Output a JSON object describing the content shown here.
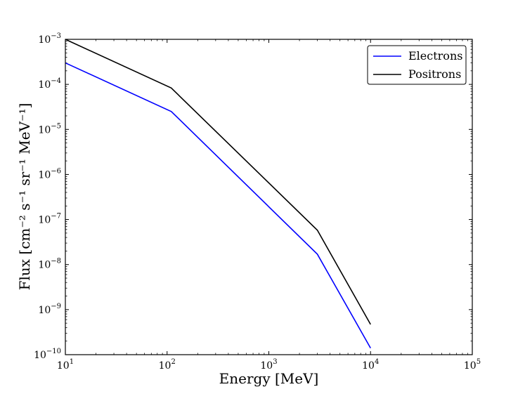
{
  "chart_data": {
    "type": "line",
    "xscale": "log",
    "yscale": "log",
    "xlim": [
      10,
      100000
    ],
    "ylim": [
      1e-10,
      0.001
    ],
    "xlabel": "Energy [MeV]",
    "ylabel": "Flux [cm⁻² s⁻¹ sr⁻¹ MeV⁻¹]",
    "x_ticks": [
      {
        "value": 10,
        "base": "10",
        "exp": "1"
      },
      {
        "value": 100,
        "base": "10",
        "exp": "2"
      },
      {
        "value": 1000,
        "base": "10",
        "exp": "3"
      },
      {
        "value": 10000,
        "base": "10",
        "exp": "4"
      },
      {
        "value": 100000,
        "base": "10",
        "exp": "5"
      }
    ],
    "y_ticks": [
      {
        "value": 1e-10,
        "base": "10",
        "exp": "−10"
      },
      {
        "value": 1e-09,
        "base": "10",
        "exp": "−9"
      },
      {
        "value": 1e-08,
        "base": "10",
        "exp": "−8"
      },
      {
        "value": 1e-07,
        "base": "10",
        "exp": "−7"
      },
      {
        "value": 1e-06,
        "base": "10",
        "exp": "−6"
      },
      {
        "value": 1e-05,
        "base": "10",
        "exp": "−5"
      },
      {
        "value": 0.0001,
        "base": "10",
        "exp": "−4"
      },
      {
        "value": 0.001,
        "base": "10",
        "exp": "−3"
      }
    ],
    "legend_position": "top-right",
    "series": [
      {
        "name": "Electrons",
        "color": "#0000ff",
        "points": [
          [
            10,
            0.0003
          ],
          [
            110,
            2.5e-05
          ],
          [
            3000,
            1.7e-08
          ],
          [
            10000,
            1.4e-10
          ]
        ]
      },
      {
        "name": "Positrons",
        "color": "#000000",
        "points": [
          [
            10,
            0.001
          ],
          [
            110,
            8.3e-05
          ],
          [
            3000,
            5.8e-08
          ],
          [
            10000,
            4.7e-10
          ]
        ]
      }
    ]
  }
}
